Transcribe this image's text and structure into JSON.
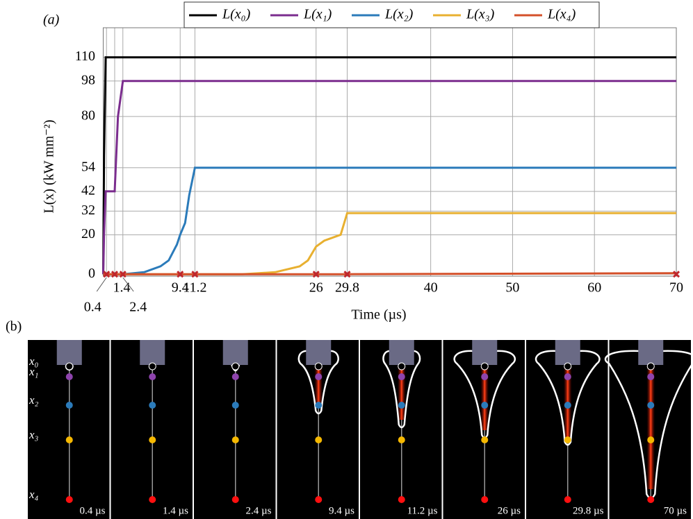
{
  "chart_data": {
    "type": "line",
    "label": "(a)",
    "xlabel": "Time (µs)",
    "ylabel": "L(x) (kW mm⁻²)",
    "x": [
      0,
      0.1,
      0.3,
      0.4,
      1.4,
      1.8,
      2.4,
      5,
      7,
      8,
      9,
      9.4,
      10,
      10.5,
      11.2,
      17,
      21,
      24,
      25,
      26,
      27,
      29,
      29.8,
      70
    ],
    "xlim": [
      0,
      70
    ],
    "ylim": [
      -1,
      125
    ],
    "xticks": [
      0.4,
      1.4,
      2.4,
      9.4,
      11.2,
      26,
      29.8,
      40,
      50,
      60,
      70
    ],
    "yticks": [
      0,
      20,
      32,
      42,
      54,
      80,
      98,
      110
    ],
    "grid": true,
    "series": [
      {
        "name": "L(x₀)",
        "color": "#000000",
        "values": [
          0,
          60,
          110,
          110,
          110,
          110,
          110,
          110,
          110,
          110,
          110,
          110,
          110,
          110,
          110,
          110,
          110,
          110,
          110,
          110,
          110,
          110,
          110,
          110
        ]
      },
      {
        "name": "L(x₁)",
        "color": "#7b2d8e",
        "values": [
          0,
          20,
          42,
          42,
          42,
          80,
          98,
          98,
          98,
          98,
          98,
          98,
          98,
          98,
          98,
          98,
          98,
          98,
          98,
          98,
          98,
          98,
          98,
          98
        ]
      },
      {
        "name": "L(x₂)",
        "color": "#2b7bba",
        "values": [
          0,
          0,
          0,
          0,
          0,
          0,
          0,
          1,
          4,
          7,
          15,
          20,
          26,
          40,
          54,
          54,
          54,
          54,
          54,
          54,
          54,
          54,
          54,
          54
        ]
      },
      {
        "name": "L(x₃)",
        "color": "#e8b030",
        "values": [
          0,
          0,
          0,
          0,
          0,
          0,
          0,
          0,
          0,
          0,
          0,
          0,
          0,
          0,
          0,
          0,
          1,
          4,
          7,
          14,
          17,
          20,
          31,
          31
        ]
      },
      {
        "name": "L(x₄)",
        "color": "#d4502a",
        "values": [
          0,
          0,
          0,
          0,
          0,
          0,
          0,
          0,
          0,
          0,
          0,
          0,
          0,
          0,
          0,
          0,
          0,
          0,
          0,
          0,
          0,
          0,
          0,
          0.5
        ]
      }
    ],
    "markers": {
      "color": "#c0272d",
      "x": [
        0.4,
        1.4,
        2.4,
        9.4,
        11.2,
        26,
        29.8,
        70
      ]
    }
  },
  "panel_b": {
    "label": "(b)",
    "points": [
      "x₀",
      "x₁",
      "x₂",
      "x₃",
      "x₄"
    ],
    "frames": [
      "0.4 µs",
      "1.4 µs",
      "2.4 µs",
      "9.4 µs",
      "11.2 µs",
      "26 µs",
      "29.8 µs",
      "70 µs"
    ]
  }
}
